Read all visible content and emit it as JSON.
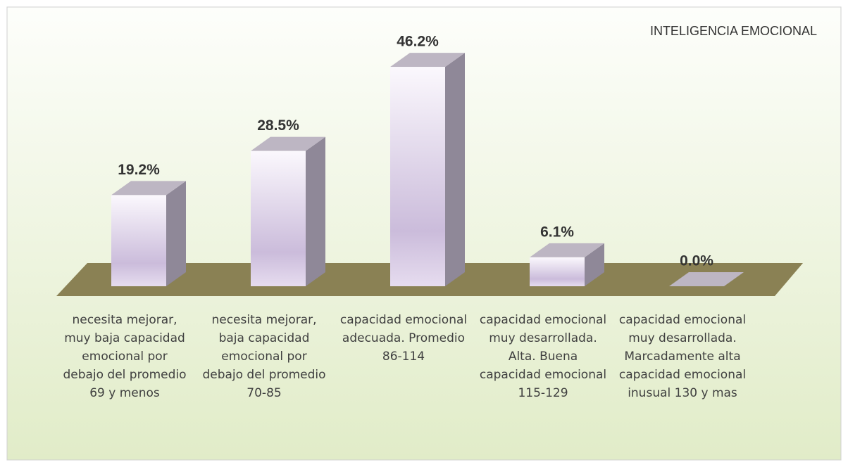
{
  "chart_data": {
    "type": "bar3d",
    "title": "INTELIGENCIA EMOCIONAL",
    "categories": [
      "necesita mejorar, muy baja capacidad emocional por debajo del promedio 69 y menos",
      "necesita mejorar, baja capacidad emocional por debajo del promedio 70-85",
      "capacidad emocional adecuada. Promedio 86-114",
      "capacidad emocional muy desarrollada. Alta. Buena capacidad emocional 115-129",
      "capacidad emocional muy desarrollada. Marcadamente alta capacidad emocional inusual 130 y mas"
    ],
    "values": [
      19.2,
      28.5,
      46.2,
      6.1,
      0.0
    ],
    "value_labels": [
      "19.2%",
      "28.5%",
      "46.2%",
      "6.1%",
      "0.0%"
    ],
    "color": "#cbbcdb"
  }
}
